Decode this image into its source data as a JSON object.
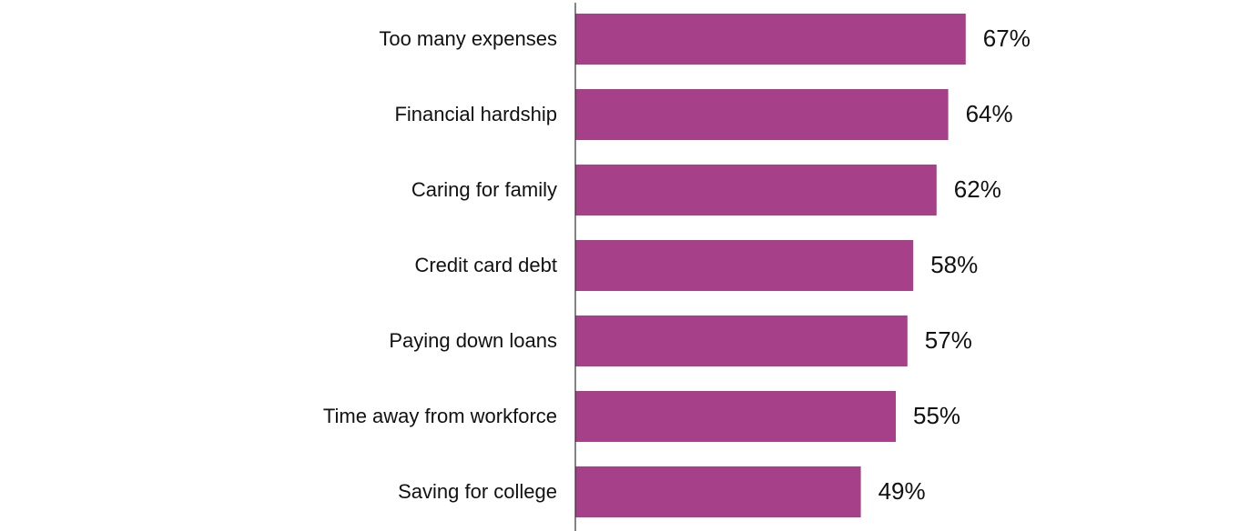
{
  "chart_data": {
    "type": "bar",
    "orientation": "horizontal",
    "categories": [
      "Too many expenses",
      "Financial hardship",
      "Caring for family",
      "Credit card debt",
      "Paying down loans",
      "Time away from workforce",
      "Saving for college"
    ],
    "values": [
      67,
      64,
      62,
      58,
      57,
      55,
      49
    ],
    "value_labels": [
      "67%",
      "64%",
      "62%",
      "58%",
      "57%",
      "55%",
      "49%"
    ],
    "unit": "%",
    "title": "",
    "xlabel": "",
    "ylabel": "",
    "xlim": [
      0,
      100
    ],
    "grid": false,
    "legend": "none",
    "bar_color": "#a64189",
    "axis_color": "#333333"
  }
}
